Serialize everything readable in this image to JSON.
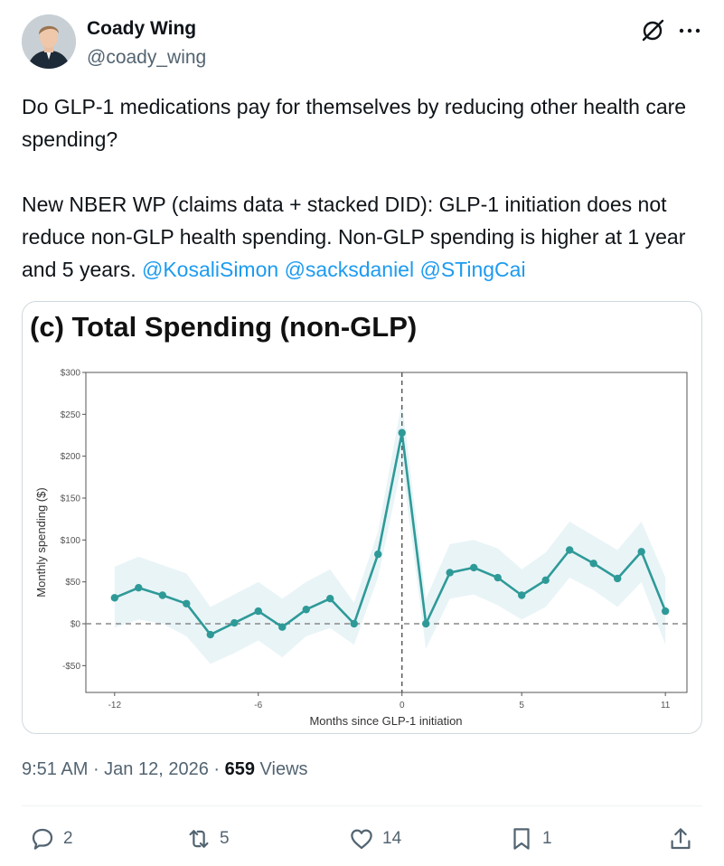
{
  "author": {
    "name": "Coady Wing",
    "handle": "@coady_wing"
  },
  "icons": {
    "grok": "grok-icon",
    "more": "more-icon",
    "reply": "reply-icon",
    "retweet": "retweet-icon",
    "like": "heart-icon",
    "bookmark": "bookmark-icon",
    "share": "share-icon"
  },
  "tweet": {
    "line1": "Do GLP-1 medications pay for themselves by reducing other health care spending?",
    "line2": "New NBER WP (claims data + stacked DID): GLP-1 initiation does not reduce non-GLP health spending. Non-GLP spending is higher at 1 year and 5 years.",
    "mentions": [
      "@KosaliSimon",
      "@sacksdaniel",
      "@STingCai"
    ]
  },
  "meta": {
    "time": "9:51 AM",
    "date": "Jan 12, 2026",
    "views_count": "659",
    "views_label": "Views"
  },
  "actions": {
    "replies": "2",
    "retweets": "5",
    "likes": "14",
    "bookmarks": "1"
  },
  "chart_data": {
    "type": "line",
    "title": "(c) Total Spending (non-GLP)",
    "xlabel": "Months since GLP-1 initiation",
    "ylabel": "Monthly spending ($)",
    "x": [
      -12,
      -11,
      -10,
      -9,
      -8,
      -7,
      -6,
      -5,
      -4,
      -3,
      -2,
      -1,
      0,
      1,
      2,
      3,
      4,
      5,
      6,
      7,
      8,
      9,
      10,
      11
    ],
    "values": [
      31,
      43,
      34,
      24,
      -13,
      1,
      15,
      -4,
      17,
      30,
      0,
      83,
      228,
      0,
      61,
      67,
      55,
      34,
      52,
      88,
      72,
      54,
      86,
      15
    ],
    "ci_lower": [
      -5,
      5,
      0,
      -15,
      -48,
      -35,
      -20,
      -40,
      -15,
      -5,
      -25,
      55,
      190,
      -30,
      30,
      35,
      22,
      5,
      20,
      55,
      40,
      20,
      50,
      -25
    ],
    "ci_upper": [
      68,
      80,
      70,
      60,
      20,
      35,
      50,
      30,
      50,
      65,
      25,
      110,
      265,
      30,
      95,
      100,
      90,
      65,
      85,
      122,
      105,
      88,
      122,
      55
    ],
    "xticks": [
      -12,
      -6,
      0,
      5,
      11
    ],
    "xtick_labels": [
      "-12",
      "-6",
      "0",
      "5",
      "11"
    ],
    "yticks": [
      -50,
      0,
      50,
      100,
      150,
      200,
      250,
      300
    ],
    "ytick_labels": [
      "-$50",
      "$0",
      "$50",
      "$100",
      "$150",
      "$200",
      "$250",
      "$300"
    ],
    "xlim": [
      -13.2,
      11.9
    ],
    "ylim": [
      -82,
      300
    ],
    "reference_lines": {
      "horizontal": 0,
      "vertical": 0
    },
    "colors": {
      "line": "#2e9a98",
      "band": "#e9f4f7",
      "reference": "#888888"
    },
    "grid": false
  }
}
